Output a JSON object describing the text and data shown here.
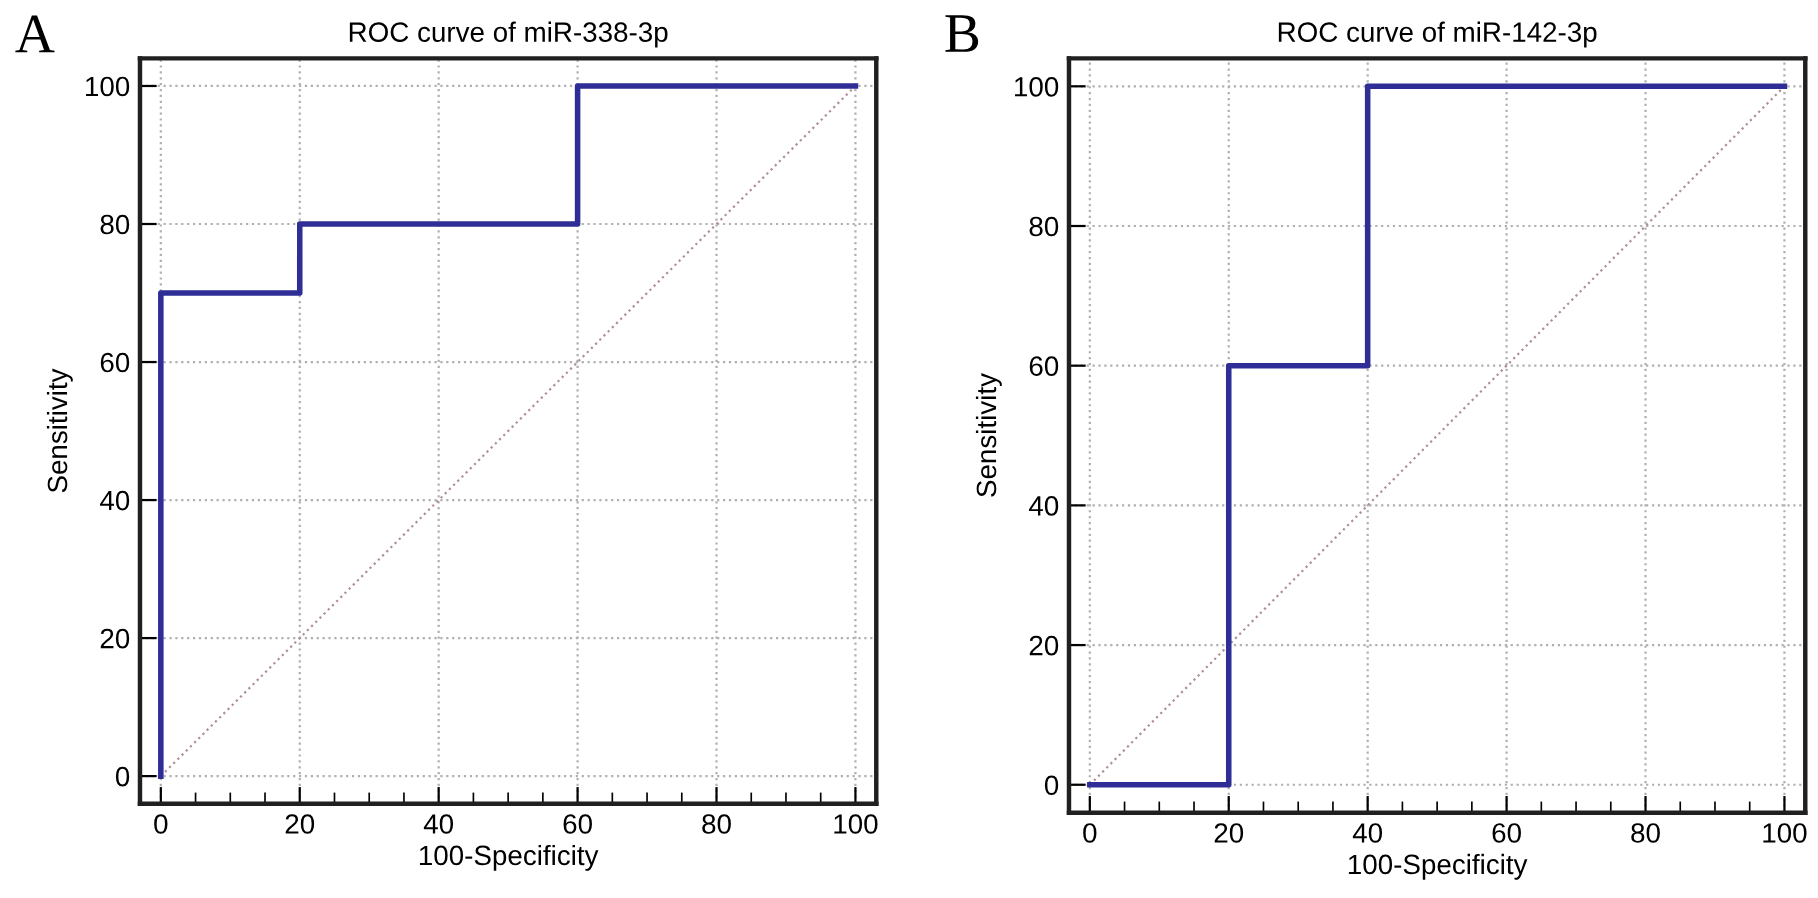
{
  "chart_data": [
    {
      "type": "line",
      "title": "ROC curve of miR-338-3p",
      "xlabel": "100-Specificity",
      "ylabel": "Sensitivity",
      "annotations": [
        "A"
      ],
      "series": [
        {
          "type": "step",
          "color": "#2e2e96",
          "x": [
            0,
            0,
            20,
            60,
            100
          ],
          "values": [
            0,
            70,
            80,
            100,
            100
          ],
          "line_style": "solid"
        },
        {
          "color": "#b09090",
          "x": [
            0,
            100
          ],
          "values": [
            0,
            100
          ],
          "line_style": "dotted"
        }
      ],
      "xlim": [
        -3,
        103
      ],
      "ylim": [
        -4,
        104
      ],
      "xticks": [
        0,
        {
          "value": 5,
          "label": null
        },
        {
          "value": 10,
          "label": null
        },
        {
          "value": 15,
          "label": null
        },
        20,
        {
          "value": 25,
          "label": null
        },
        {
          "value": 30,
          "label": null
        },
        {
          "value": 35,
          "label": null
        },
        40,
        {
          "value": 45,
          "label": null
        },
        {
          "value": 50,
          "label": null
        },
        {
          "value": 55,
          "label": null
        },
        60,
        {
          "value": 65,
          "label": null
        },
        {
          "value": 70,
          "label": null
        },
        {
          "value": 75,
          "label": null
        },
        80,
        {
          "value": 85,
          "label": null
        },
        {
          "value": 90,
          "label": null
        },
        {
          "value": 95,
          "label": null
        },
        100
      ],
      "yticks": [
        0,
        20,
        40,
        60,
        80,
        100
      ],
      "grid": true,
      "legend": false,
      "marker": "none"
    },
    {
      "type": "line",
      "title": "ROC curve of miR-142-3p",
      "xlabel": "100-Specificity",
      "ylabel": "Sensitivity",
      "annotations": [
        "B"
      ],
      "series": [
        {
          "type": "step",
          "color": "#2e2e96",
          "x": [
            0,
            20,
            40,
            100
          ],
          "values": [
            0,
            60,
            100,
            100
          ],
          "line_style": "solid"
        },
        {
          "color": "#b09090",
          "x": [
            0,
            100
          ],
          "values": [
            0,
            100
          ],
          "line_style": "dotted"
        }
      ],
      "xlim": [
        -3,
        103
      ],
      "ylim": [
        -4,
        104
      ],
      "xticks": [
        0,
        {
          "value": 5,
          "label": null
        },
        {
          "value": 10,
          "label": null
        },
        {
          "value": 15,
          "label": null
        },
        20,
        {
          "value": 25,
          "label": null
        },
        {
          "value": 30,
          "label": null
        },
        {
          "value": 35,
          "label": null
        },
        40,
        {
          "value": 45,
          "label": null
        },
        {
          "value": 50,
          "label": null
        },
        {
          "value": 55,
          "label": null
        },
        60,
        {
          "value": 65,
          "label": null
        },
        {
          "value": 70,
          "label": null
        },
        {
          "value": 75,
          "label": null
        },
        80,
        {
          "value": 85,
          "label": null
        },
        {
          "value": 90,
          "label": null
        },
        {
          "value": 95,
          "label": null
        },
        100
      ],
      "yticks": [
        0,
        20,
        40,
        60,
        80,
        100
      ],
      "grid": true,
      "legend": false,
      "marker": "none"
    }
  ]
}
